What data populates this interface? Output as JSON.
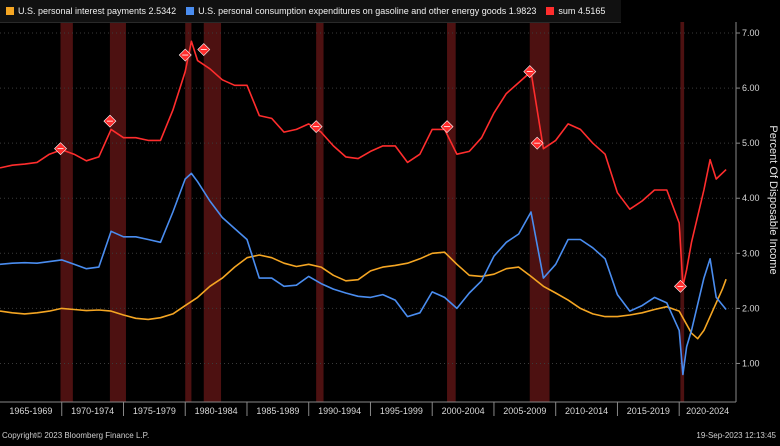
{
  "legend": [
    {
      "label": "U.S. personal interest payments 2.5342",
      "color": "#f5a623"
    },
    {
      "label": "U.S. personal consumption expenditures on gasoline and other energy goods 1.9823",
      "color": "#4a8df0"
    },
    {
      "label": "sum 4.5165",
      "color": "#ff2d2d"
    }
  ],
  "footer": {
    "left": "Copyright© 2023 Bloomberg Finance L.P.",
    "right": "19-Sep-2023 12:13:45"
  },
  "chart_data": {
    "type": "line",
    "ylabel": "Percent Of Disposable Income",
    "ylim": [
      0.3,
      7.2
    ],
    "xlim": [
      1965,
      2024.6
    ],
    "yticks": [
      1.0,
      2.0,
      3.0,
      4.0,
      5.0,
      6.0,
      7.0
    ],
    "ytick_labels": [
      "1.00",
      "2.00",
      "3.00",
      "4.00",
      "5.00",
      "6.00",
      "7.00"
    ],
    "x_categories": [
      "1965-1969",
      "1970-1974",
      "1975-1979",
      "1980-1984",
      "1985-1989",
      "1990-1994",
      "1995-1999",
      "2000-2004",
      "2005-2009",
      "2010-2014",
      "2015-2019",
      "2020-2024"
    ],
    "recessions": [
      [
        1969.9,
        1970.9
      ],
      [
        1973.9,
        1975.2
      ],
      [
        1980.0,
        1980.5
      ],
      [
        1981.5,
        1982.9
      ],
      [
        1990.6,
        1991.2
      ],
      [
        2001.2,
        2001.9
      ],
      [
        2007.9,
        2009.5
      ],
      [
        2020.1,
        2020.4
      ]
    ],
    "markers": [
      {
        "x": 1969.9,
        "y": 4.9
      },
      {
        "x": 1973.9,
        "y": 5.4
      },
      {
        "x": 1980.0,
        "y": 6.6
      },
      {
        "x": 1981.5,
        "y": 6.7
      },
      {
        "x": 1990.6,
        "y": 5.3
      },
      {
        "x": 2001.2,
        "y": 5.3
      },
      {
        "x": 2007.9,
        "y": 6.3
      },
      {
        "x": 2008.5,
        "y": 5.0
      },
      {
        "x": 2020.1,
        "y": 2.4
      }
    ],
    "grid": true,
    "series": [
      {
        "name": "U.S. personal interest payments",
        "color": "#f5a623",
        "points": [
          [
            1965,
            1.95
          ],
          [
            1966,
            1.92
          ],
          [
            1967,
            1.9
          ],
          [
            1968,
            1.92
          ],
          [
            1969,
            1.95
          ],
          [
            1970,
            2.0
          ],
          [
            1971,
            1.98
          ],
          [
            1972,
            1.96
          ],
          [
            1973,
            1.97
          ],
          [
            1974,
            1.95
          ],
          [
            1975,
            1.88
          ],
          [
            1976,
            1.82
          ],
          [
            1977,
            1.8
          ],
          [
            1978,
            1.83
          ],
          [
            1979,
            1.9
          ],
          [
            1980,
            2.05
          ],
          [
            1981,
            2.2
          ],
          [
            1982,
            2.4
          ],
          [
            1983,
            2.55
          ],
          [
            1984,
            2.75
          ],
          [
            1985,
            2.92
          ],
          [
            1986,
            2.97
          ],
          [
            1987,
            2.92
          ],
          [
            1988,
            2.82
          ],
          [
            1989,
            2.76
          ],
          [
            1990,
            2.8
          ],
          [
            1991,
            2.75
          ],
          [
            1992,
            2.6
          ],
          [
            1993,
            2.5
          ],
          [
            1994,
            2.52
          ],
          [
            1995,
            2.68
          ],
          [
            1996,
            2.75
          ],
          [
            1997,
            2.78
          ],
          [
            1998,
            2.82
          ],
          [
            1999,
            2.9
          ],
          [
            2000,
            3.0
          ],
          [
            2001,
            3.02
          ],
          [
            2002,
            2.8
          ],
          [
            2003,
            2.6
          ],
          [
            2004,
            2.58
          ],
          [
            2005,
            2.62
          ],
          [
            2006,
            2.72
          ],
          [
            2007,
            2.75
          ],
          [
            2008,
            2.58
          ],
          [
            2009,
            2.4
          ],
          [
            2010,
            2.28
          ],
          [
            2011,
            2.15
          ],
          [
            2012,
            2.0
          ],
          [
            2013,
            1.9
          ],
          [
            2014,
            1.85
          ],
          [
            2015,
            1.85
          ],
          [
            2016,
            1.88
          ],
          [
            2017,
            1.92
          ],
          [
            2018,
            1.98
          ],
          [
            2019,
            2.03
          ],
          [
            2020,
            1.95
          ],
          [
            2021,
            1.55
          ],
          [
            2021.5,
            1.45
          ],
          [
            2022,
            1.6
          ],
          [
            2022.5,
            1.85
          ],
          [
            2023,
            2.1
          ],
          [
            2023.5,
            2.35
          ],
          [
            2023.8,
            2.53
          ]
        ]
      },
      {
        "name": "U.S. personal consumption expenditures on gasoline and other energy goods",
        "color": "#4a8df0",
        "points": [
          [
            1965,
            2.8
          ],
          [
            1966,
            2.82
          ],
          [
            1967,
            2.83
          ],
          [
            1968,
            2.82
          ],
          [
            1969,
            2.85
          ],
          [
            1970,
            2.88
          ],
          [
            1971,
            2.8
          ],
          [
            1972,
            2.72
          ],
          [
            1973,
            2.75
          ],
          [
            1974,
            3.4
          ],
          [
            1975,
            3.3
          ],
          [
            1976,
            3.3
          ],
          [
            1977,
            3.25
          ],
          [
            1978,
            3.2
          ],
          [
            1979,
            3.75
          ],
          [
            1980,
            4.35
          ],
          [
            1980.5,
            4.45
          ],
          [
            1981,
            4.3
          ],
          [
            1982,
            3.95
          ],
          [
            1983,
            3.65
          ],
          [
            1984,
            3.45
          ],
          [
            1985,
            3.25
          ],
          [
            1986,
            2.55
          ],
          [
            1987,
            2.55
          ],
          [
            1988,
            2.4
          ],
          [
            1989,
            2.42
          ],
          [
            1990,
            2.58
          ],
          [
            1991,
            2.45
          ],
          [
            1992,
            2.35
          ],
          [
            1993,
            2.28
          ],
          [
            1994,
            2.22
          ],
          [
            1995,
            2.2
          ],
          [
            1996,
            2.25
          ],
          [
            1997,
            2.15
          ],
          [
            1998,
            1.85
          ],
          [
            1999,
            1.92
          ],
          [
            2000,
            2.3
          ],
          [
            2001,
            2.2
          ],
          [
            2002,
            2.0
          ],
          [
            2003,
            2.28
          ],
          [
            2004,
            2.5
          ],
          [
            2005,
            2.95
          ],
          [
            2006,
            3.2
          ],
          [
            2007,
            3.35
          ],
          [
            2008,
            3.75
          ],
          [
            2009,
            2.55
          ],
          [
            2010,
            2.8
          ],
          [
            2011,
            3.25
          ],
          [
            2012,
            3.25
          ],
          [
            2013,
            3.1
          ],
          [
            2014,
            2.9
          ],
          [
            2015,
            2.25
          ],
          [
            2016,
            1.95
          ],
          [
            2017,
            2.05
          ],
          [
            2018,
            2.2
          ],
          [
            2019,
            2.1
          ],
          [
            2020,
            1.6
          ],
          [
            2020.3,
            0.8
          ],
          [
            2020.6,
            1.3
          ],
          [
            2021,
            1.6
          ],
          [
            2022,
            2.55
          ],
          [
            2022.5,
            2.9
          ],
          [
            2023,
            2.2
          ],
          [
            2023.8,
            1.98
          ]
        ]
      },
      {
        "name": "sum",
        "color": "#ff2d2d",
        "points": [
          [
            1965,
            4.55
          ],
          [
            1966,
            4.6
          ],
          [
            1967,
            4.62
          ],
          [
            1968,
            4.65
          ],
          [
            1969,
            4.8
          ],
          [
            1970,
            4.88
          ],
          [
            1971,
            4.8
          ],
          [
            1972,
            4.68
          ],
          [
            1973,
            4.75
          ],
          [
            1974,
            5.25
          ],
          [
            1975,
            5.1
          ],
          [
            1976,
            5.1
          ],
          [
            1977,
            5.05
          ],
          [
            1978,
            5.05
          ],
          [
            1979,
            5.6
          ],
          [
            1980,
            6.3
          ],
          [
            1980.5,
            6.85
          ],
          [
            1981,
            6.5
          ],
          [
            1982,
            6.35
          ],
          [
            1983,
            6.15
          ],
          [
            1984,
            6.05
          ],
          [
            1985,
            6.05
          ],
          [
            1986,
            5.5
          ],
          [
            1987,
            5.45
          ],
          [
            1988,
            5.2
          ],
          [
            1989,
            5.25
          ],
          [
            1990,
            5.35
          ],
          [
            1991,
            5.2
          ],
          [
            1992,
            4.95
          ],
          [
            1993,
            4.75
          ],
          [
            1994,
            4.72
          ],
          [
            1995,
            4.85
          ],
          [
            1996,
            4.95
          ],
          [
            1997,
            4.95
          ],
          [
            1998,
            4.65
          ],
          [
            1999,
            4.8
          ],
          [
            2000,
            5.25
          ],
          [
            2001,
            5.25
          ],
          [
            2002,
            4.8
          ],
          [
            2003,
            4.85
          ],
          [
            2004,
            5.1
          ],
          [
            2005,
            5.55
          ],
          [
            2006,
            5.9
          ],
          [
            2007,
            6.1
          ],
          [
            2008,
            6.3
          ],
          [
            2009,
            4.9
          ],
          [
            2010,
            5.05
          ],
          [
            2011,
            5.35
          ],
          [
            2012,
            5.25
          ],
          [
            2013,
            5.0
          ],
          [
            2014,
            4.8
          ],
          [
            2015,
            4.1
          ],
          [
            2016,
            3.8
          ],
          [
            2017,
            3.95
          ],
          [
            2018,
            4.15
          ],
          [
            2019,
            4.15
          ],
          [
            2020,
            3.55
          ],
          [
            2020.3,
            2.4
          ],
          [
            2020.6,
            2.7
          ],
          [
            2021,
            3.2
          ],
          [
            2022,
            4.15
          ],
          [
            2022.5,
            4.7
          ],
          [
            2023,
            4.35
          ],
          [
            2023.8,
            4.52
          ]
        ]
      }
    ]
  }
}
